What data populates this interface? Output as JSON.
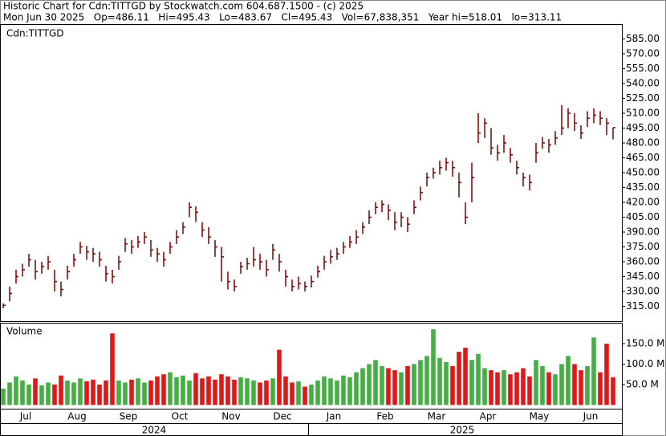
{
  "header": {
    "line1": "Historic Chart for Cdn:TITTGD by Stockwatch.com 604.687.1500 - (c) 2025",
    "line2": "Mon Jun 30 2025   Op=486.11   Hi=495.43   Lo=483.67   Cl=495.43   Vol=67,838,351   Year hi=518.01   lo=313.11"
  },
  "chart_data": {
    "type": "ohlc",
    "price_label": "Cdn:TITTGD",
    "volume_label": "Volume",
    "bar_color": "#7a0000",
    "up_color": "#44b044",
    "down_color": "#e01818",
    "months": [
      "Jul",
      "Aug",
      "Sep",
      "Oct",
      "Nov",
      "Dec",
      "Jan",
      "Feb",
      "Mar",
      "Apr",
      "May",
      "Jun"
    ],
    "years": [
      "2024",
      "2025"
    ],
    "x": [
      "2024-07",
      "2024-07",
      "2024-07",
      "2024-07",
      "2024-07",
      "2024-07",
      "2024-07",
      "2024-07",
      "2024-08",
      "2024-08",
      "2024-08",
      "2024-08",
      "2024-08",
      "2024-08",
      "2024-08",
      "2024-08",
      "2024-09",
      "2024-09",
      "2024-09",
      "2024-09",
      "2024-09",
      "2024-09",
      "2024-09",
      "2024-09",
      "2024-10",
      "2024-10",
      "2024-10",
      "2024-10",
      "2024-10",
      "2024-10",
      "2024-10",
      "2024-10",
      "2024-11",
      "2024-11",
      "2024-11",
      "2024-11",
      "2024-11",
      "2024-11",
      "2024-11",
      "2024-11",
      "2024-12",
      "2024-12",
      "2024-12",
      "2024-12",
      "2024-12",
      "2024-12",
      "2024-12",
      "2024-12",
      "2025-01",
      "2025-01",
      "2025-01",
      "2025-01",
      "2025-01",
      "2025-01",
      "2025-01",
      "2025-01",
      "2025-02",
      "2025-02",
      "2025-02",
      "2025-02",
      "2025-02",
      "2025-02",
      "2025-02",
      "2025-02",
      "2025-03",
      "2025-03",
      "2025-03",
      "2025-03",
      "2025-03",
      "2025-03",
      "2025-03",
      "2025-03",
      "2025-04",
      "2025-04",
      "2025-04",
      "2025-04",
      "2025-04",
      "2025-04",
      "2025-04",
      "2025-04",
      "2025-05",
      "2025-05",
      "2025-05",
      "2025-05",
      "2025-05",
      "2025-05",
      "2025-05",
      "2025-05",
      "2025-06",
      "2025-06",
      "2025-06",
      "2025-06",
      "2025-06",
      "2025-06",
      "2025-06",
      "2025-06"
    ],
    "high": [
      318,
      335,
      352,
      358,
      368,
      362,
      360,
      366,
      352,
      340,
      356,
      368,
      380,
      376,
      374,
      370,
      356,
      352,
      366,
      384,
      382,
      386,
      390,
      382,
      374,
      370,
      380,
      392,
      400,
      420,
      416,
      400,
      395,
      382,
      375,
      350,
      342,
      360,
      364,
      375,
      368,
      362,
      378,
      368,
      352,
      342,
      345,
      340,
      346,
      356,
      366,
      372,
      374,
      380,
      386,
      392,
      400,
      412,
      420,
      422,
      418,
      410,
      410,
      405,
      422,
      436,
      450,
      455,
      462,
      465,
      462,
      450,
      420,
      460,
      510,
      505,
      495,
      478,
      488,
      475,
      462,
      450,
      448,
      480,
      486,
      484,
      492,
      518.01,
      515,
      510,
      498,
      512,
      515,
      512,
      505,
      495.43
    ],
    "low": [
      313.11,
      320,
      338,
      345,
      355,
      342,
      348,
      352,
      330,
      325,
      342,
      355,
      368,
      362,
      360,
      355,
      340,
      338,
      352,
      370,
      368,
      374,
      378,
      365,
      360,
      355,
      368,
      378,
      388,
      405,
      400,
      385,
      378,
      365,
      340,
      332,
      330,
      348,
      352,
      355,
      352,
      345,
      362,
      350,
      335,
      330,
      332,
      330,
      334,
      344,
      352,
      358,
      362,
      368,
      374,
      378,
      388,
      398,
      408,
      410,
      402,
      392,
      395,
      390,
      408,
      422,
      436,
      444,
      448,
      452,
      446,
      425,
      398,
      420,
      480,
      485,
      468,
      462,
      470,
      460,
      448,
      436,
      432,
      460,
      474,
      470,
      478,
      488,
      495,
      492,
      484,
      496,
      500,
      498,
      488,
      483.67
    ],
    "close": [
      316,
      328,
      345,
      352,
      362,
      350,
      355,
      360,
      340,
      332,
      350,
      362,
      375,
      370,
      368,
      362,
      348,
      345,
      360,
      378,
      375,
      380,
      385,
      372,
      368,
      362,
      375,
      385,
      395,
      415,
      410,
      392,
      385,
      375,
      365,
      340,
      335,
      355,
      358,
      362,
      360,
      352,
      372,
      360,
      345,
      335,
      338,
      335,
      340,
      350,
      360,
      365,
      368,
      375,
      380,
      385,
      395,
      405,
      415,
      418,
      412,
      400,
      405,
      398,
      415,
      430,
      445,
      450,
      455,
      460,
      455,
      440,
      405,
      445,
      490,
      500,
      475,
      470,
      480,
      468,
      455,
      445,
      440,
      470,
      480,
      478,
      485,
      495,
      510,
      500,
      490,
      505,
      508,
      505,
      500,
      495.43
    ],
    "volume": [
      40,
      55,
      70,
      60,
      50,
      65,
      48,
      55,
      50,
      72,
      60,
      55,
      65,
      58,
      62,
      50,
      60,
      175,
      60,
      55,
      62,
      65,
      55,
      60,
      70,
      75,
      80,
      68,
      72,
      60,
      78,
      65,
      70,
      62,
      75,
      70,
      62,
      68,
      65,
      60,
      55,
      60,
      65,
      135,
      70,
      55,
      58,
      45,
      50,
      60,
      70,
      65,
      60,
      72,
      68,
      80,
      90,
      100,
      110,
      95,
      90,
      85,
      80,
      95,
      100,
      110,
      120,
      185,
      115,
      105,
      95,
      130,
      140,
      110,
      125,
      90,
      85,
      80,
      85,
      75,
      80,
      90,
      70,
      110,
      95,
      80,
      75,
      100,
      120,
      100,
      85,
      95,
      165,
      80,
      150,
      67.84
    ],
    "ylim": [
      300,
      600
    ],
    "yticks": [
      {
        "value": 315,
        "label": "315.00"
      },
      {
        "value": 330,
        "label": "330.00"
      },
      {
        "value": 345,
        "label": "345.00"
      },
      {
        "value": 360,
        "label": "360.00"
      },
      {
        "value": 375,
        "label": "375.00"
      },
      {
        "value": 390,
        "label": "390.00"
      },
      {
        "value": 405,
        "label": "405.00"
      },
      {
        "value": 420,
        "label": "420.00"
      },
      {
        "value": 435,
        "label": "435.00"
      },
      {
        "value": 450,
        "label": "450.00"
      },
      {
        "value": 465,
        "label": "465.00"
      },
      {
        "value": 480,
        "label": "480.00"
      },
      {
        "value": 495,
        "label": "495.00"
      },
      {
        "value": 510,
        "label": "510.00"
      },
      {
        "value": 525,
        "label": "525.00"
      },
      {
        "value": 540,
        "label": "540.00"
      },
      {
        "value": 555,
        "label": "555.00"
      },
      {
        "value": 570,
        "label": "570.00"
      },
      {
        "value": 585,
        "label": "585.00"
      }
    ],
    "y2lim": [
      -11,
      199
    ],
    "y2ticks": [
      {
        "value": 50,
        "label": "50.0 M"
      },
      {
        "value": 100,
        "label": "100.0 M"
      },
      {
        "value": 150,
        "label": "150.0 M"
      }
    ]
  }
}
